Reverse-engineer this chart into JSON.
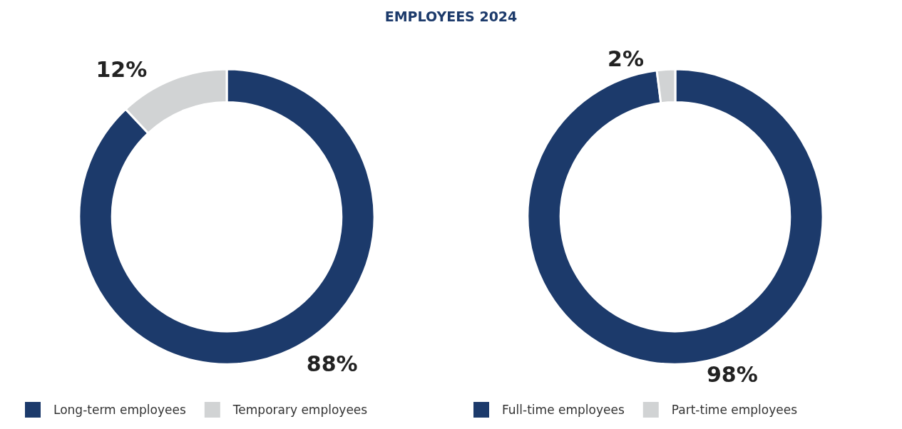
{
  "chart_data": [
    {
      "type": "donut",
      "title": "EMPLOYEES 2024",
      "categories": [
        "Long-term employees",
        "Temporary employees"
      ],
      "values": [
        88,
        12
      ],
      "colors": [
        "#1c3a6b",
        "#d1d3d4"
      ],
      "value_labels": [
        "88%",
        "12%"
      ],
      "legend": "bottom"
    },
    {
      "type": "donut",
      "categories": [
        "Full-time employees",
        "Part-time employees"
      ],
      "values": [
        98,
        2
      ],
      "colors": [
        "#1c3a6b",
        "#d1d3d4"
      ],
      "value_labels": [
        "98%",
        "2%"
      ],
      "legend": "bottom"
    }
  ]
}
